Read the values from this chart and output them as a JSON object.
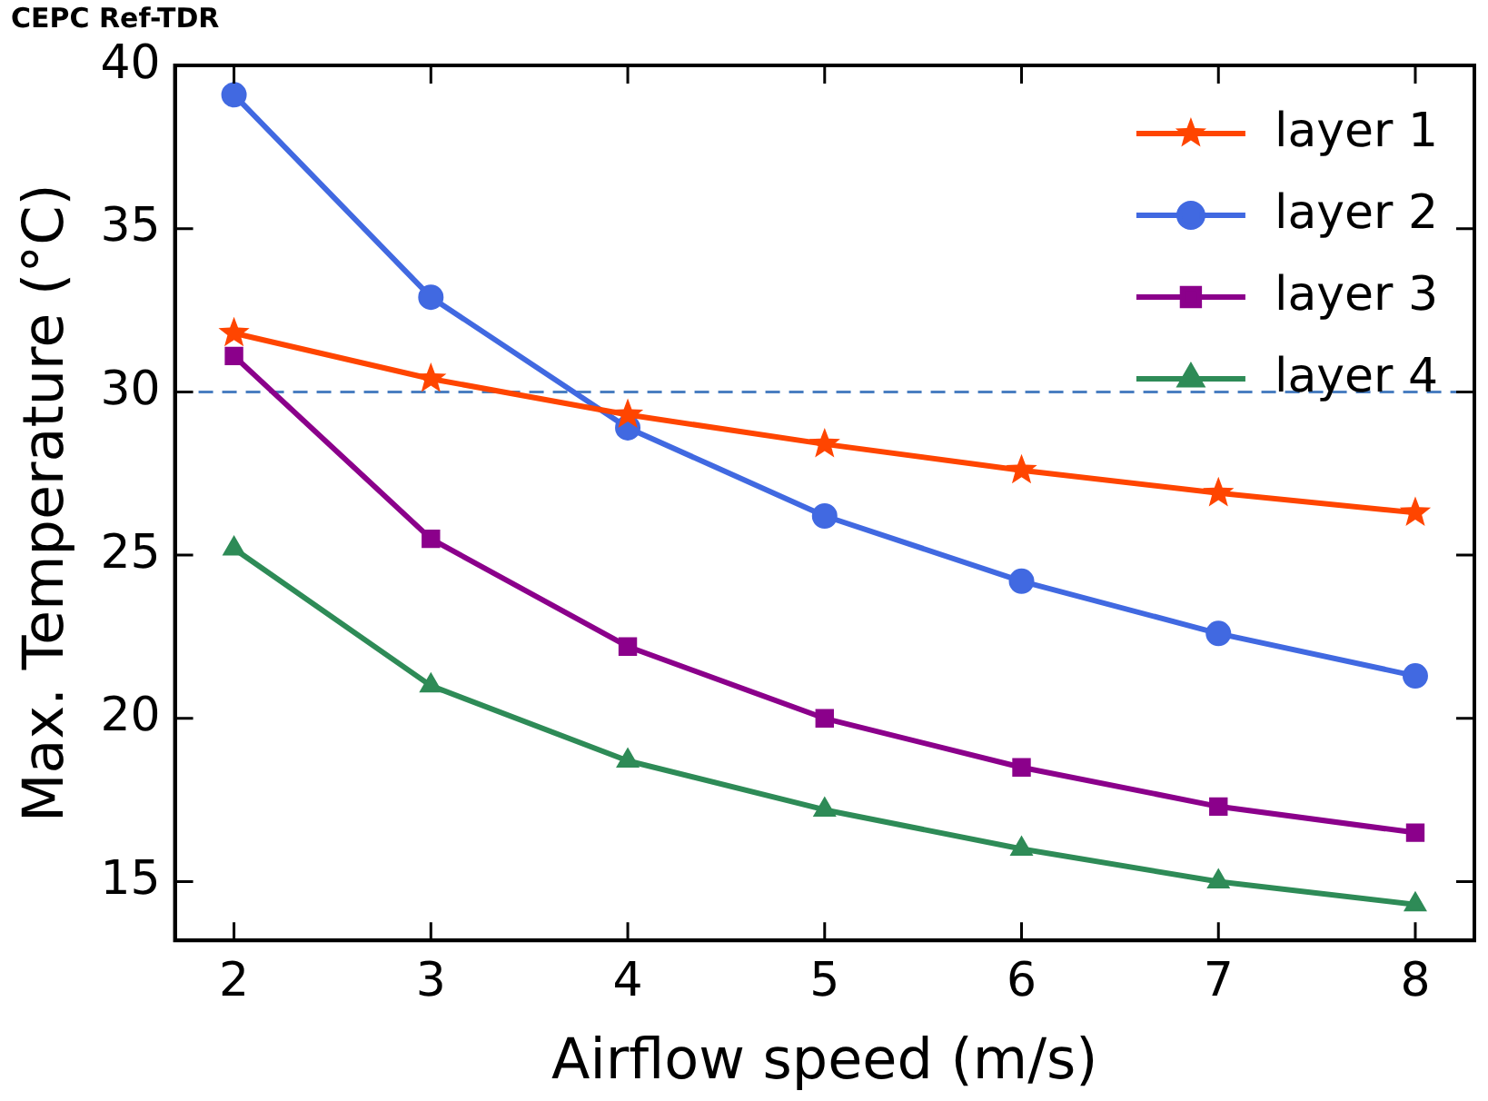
{
  "chart_data": {
    "type": "line",
    "title": "CEPC Ref-TDR",
    "xlabel": "Airflow speed (m/s)",
    "ylabel": "Max. Temperature (°C)",
    "x": [
      2,
      3,
      4,
      5,
      6,
      7,
      8
    ],
    "series": [
      {
        "name": "layer 1",
        "color": "#ff4500",
        "marker": "star",
        "values": [
          31.8,
          30.4,
          29.3,
          28.4,
          27.6,
          26.9,
          26.3
        ]
      },
      {
        "name": "layer 2",
        "color": "#4169e1",
        "marker": "circle",
        "values": [
          39.1,
          32.9,
          28.9,
          26.2,
          24.2,
          22.6,
          21.3
        ]
      },
      {
        "name": "layer 3",
        "color": "#8b008b",
        "marker": "square",
        "values": [
          31.1,
          25.5,
          22.2,
          20.0,
          18.5,
          17.3,
          16.5
        ]
      },
      {
        "name": "layer 4",
        "color": "#2e8b57",
        "marker": "triangle",
        "values": [
          25.2,
          21.0,
          18.7,
          17.2,
          16.0,
          15.0,
          14.3
        ]
      }
    ],
    "xlim": [
      1.7,
      8.3
    ],
    "xticks": [
      2,
      3,
      4,
      5,
      6,
      7,
      8
    ],
    "ylim": [
      13.2,
      40
    ],
    "yticks": [
      15,
      20,
      25,
      30,
      35,
      40
    ],
    "ref_lines": [
      {
        "axis": "y",
        "value": 30,
        "color": "#4a7fc1",
        "line_style": "dashed"
      }
    ],
    "legend": "top right",
    "grid": false,
    "line_style": "solid"
  }
}
